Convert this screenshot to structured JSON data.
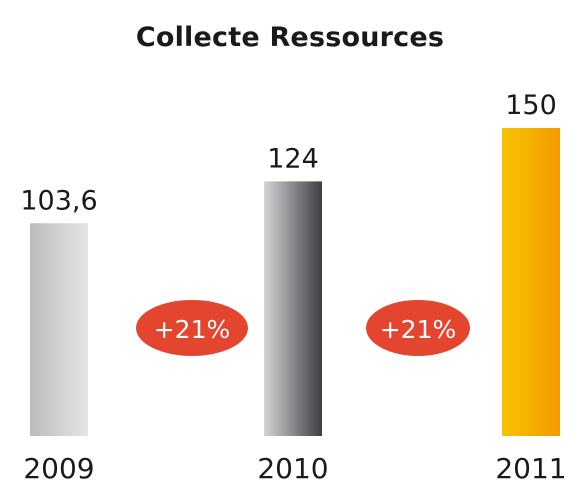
{
  "chart_data": {
    "type": "bar",
    "title": "Collecte Ressources",
    "categories": [
      "2009",
      "2010",
      "2011"
    ],
    "values": [
      103.6,
      124,
      150
    ],
    "value_labels": [
      "103,6",
      "124",
      "150"
    ],
    "growth_badges": [
      "+21%",
      "+21%"
    ],
    "colors": {
      "bar_2009": [
        "#b9bbbd",
        "#e4e5e6"
      ],
      "bar_2010": [
        "#d3d4d6",
        "#3e3f43"
      ],
      "bar_2011": [
        "#f6c400",
        "#f49a00"
      ],
      "badge": "#e4452f",
      "badge_text": "#ffffff",
      "text": "#1a1a1a"
    },
    "xlabel": "",
    "ylabel": "",
    "grid": false,
    "legend": "none"
  }
}
